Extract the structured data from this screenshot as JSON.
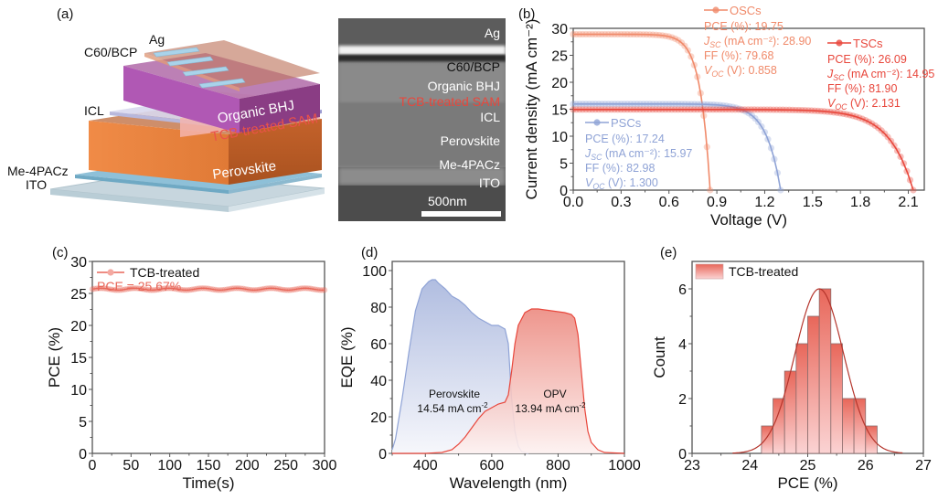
{
  "panels": {
    "a": {
      "label": "(a)",
      "stack_labels": {
        "ag": "Ag",
        "c60": "C60/BCP",
        "icl": "ICL",
        "me4pacz": "Me-4PACz",
        "ito": "ITO",
        "organic": "Organic BHJ",
        "sam": "TCB-treated SAM",
        "perovskite": "Perovskite"
      },
      "sem_labels": [
        "Ag",
        "C60/BCP",
        "Organic BHJ",
        "TCB-treated SAM",
        "ICL",
        "Perovskite",
        "Me-4PACz",
        "ITO"
      ],
      "scale_bar": "500nm",
      "colors": {
        "perovskite": "#d9733a",
        "organic": "#8e3f88",
        "sam": "#f4b0ad",
        "sam_text": "#e8473c",
        "silver": "#a9d3ea",
        "ito": "#c9d9e0",
        "me4pacz": "#7fb5cf"
      }
    },
    "b": {
      "label": "(b)"
    },
    "c": {
      "label": "(c)"
    },
    "d": {
      "label": "(d)"
    },
    "e": {
      "label": "(e)"
    }
  },
  "chart_data": [
    {
      "id": "b",
      "type": "line",
      "xlabel": "Voltage (V)",
      "ylabel": "Current density (mA cm⁻²)",
      "xlim": [
        0,
        2.2
      ],
      "ylim": [
        0,
        30
      ],
      "xticks": [
        "0.0",
        "0.3",
        "0.6",
        "0.9",
        "1.2",
        "1.5",
        "1.8",
        "2.1"
      ],
      "yticks": [
        "0",
        "5",
        "10",
        "15",
        "20",
        "25",
        "30"
      ],
      "series": [
        {
          "name": "OSCs",
          "color": "#f08a6a",
          "jsc": 28.9,
          "voc": 0.858,
          "ff": 79.68,
          "pce": 19.75,
          "legend_lines": [
            "PCE (%): 19.75",
            "J_SC (mA cm⁻²): 28.90",
            "FF (%): 79.68",
            "V_OC (V): 0.858"
          ]
        },
        {
          "name": "PSCs",
          "color": "#8fa3d6",
          "jsc": 15.97,
          "voc": 1.3,
          "ff": 82.98,
          "pce": 17.24,
          "legend_lines": [
            "PCE (%): 17.24",
            "J_SC (mA cm⁻²): 15.97",
            "FF (%): 82.98",
            "V_OC (V): 1.300"
          ]
        },
        {
          "name": "TSCs",
          "color": "#e8473c",
          "jsc": 14.95,
          "voc": 2.131,
          "ff": 81.9,
          "pce": 26.09,
          "legend_lines": [
            "PCE (%): 26.09",
            "J_SC (mA cm⁻²): 14.95",
            "FF (%): 81.90",
            "V_OC (V): 2.131"
          ]
        }
      ]
    },
    {
      "id": "c",
      "type": "line",
      "xlabel": "Time(s)",
      "ylabel": "PCE (%)",
      "xlim": [
        0,
        300
      ],
      "ylim": [
        0,
        30
      ],
      "xticks": [
        "0",
        "50",
        "100",
        "150",
        "200",
        "250",
        "300"
      ],
      "yticks": [
        "0",
        "5",
        "10",
        "15",
        "20",
        "25",
        "30"
      ],
      "series": [
        {
          "name": "TCB-treated",
          "color": "#e8675a",
          "value": 25.67
        }
      ],
      "annotation": "PCE = 25.67%"
    },
    {
      "id": "d",
      "type": "area",
      "xlabel": "Wavelength (nm)",
      "ylabel": "EQE (%)",
      "xlim": [
        300,
        1000
      ],
      "ylim": [
        0,
        105
      ],
      "xticks": [
        "400",
        "600",
        "800",
        "1000"
      ],
      "yticks": [
        "0",
        "20",
        "40",
        "60",
        "80",
        "100"
      ],
      "series": [
        {
          "name": "Perovskite",
          "color": "#8fa3d6",
          "annotation": [
            "Perovskite",
            "14.54 mA cm⁻²"
          ],
          "x": [
            300,
            310,
            330,
            350,
            370,
            390,
            410,
            420,
            430,
            440,
            460,
            480,
            500,
            520,
            540,
            560,
            580,
            600,
            620,
            640,
            650,
            655,
            660,
            670,
            680,
            690,
            700,
            710
          ],
          "y": [
            2,
            8,
            30,
            55,
            78,
            90,
            94,
            95,
            95,
            93,
            90,
            86,
            84,
            81,
            77,
            74,
            72,
            70,
            70,
            68,
            60,
            45,
            30,
            12,
            4,
            1,
            0.5,
            0
          ]
        },
        {
          "name": "OPV",
          "color": "#e8473c",
          "annotation": [
            "OPV",
            "13.94 mA cm⁻²"
          ],
          "x": [
            300,
            400,
            450,
            480,
            500,
            520,
            540,
            560,
            580,
            600,
            620,
            640,
            650,
            660,
            670,
            680,
            700,
            720,
            740,
            760,
            780,
            800,
            820,
            840,
            850,
            860,
            870,
            880,
            890,
            900,
            920,
            940,
            1000
          ],
          "y": [
            0,
            0,
            0.5,
            2,
            5,
            9,
            14,
            19,
            23,
            25,
            27,
            28,
            32,
            45,
            60,
            70,
            77,
            79,
            79,
            78.5,
            78,
            77.5,
            77,
            76,
            74,
            65,
            45,
            25,
            12,
            6,
            2,
            0.5,
            0
          ]
        }
      ]
    },
    {
      "id": "e",
      "type": "bar",
      "xlabel": "PCE (%)",
      "ylabel": "Count",
      "xlim": [
        23,
        27
      ],
      "ylim": [
        0,
        7
      ],
      "xticks": [
        "23",
        "24",
        "25",
        "26",
        "27"
      ],
      "yticks": [
        "0",
        "2",
        "4",
        "6"
      ],
      "bin_edges": [
        24.2,
        24.4,
        24.6,
        24.8,
        25.0,
        25.2,
        25.4,
        25.6,
        25.8,
        26.0,
        26.2
      ],
      "values": [
        1,
        2,
        3,
        4,
        5,
        6,
        4,
        2,
        2,
        1
      ],
      "fit": {
        "type": "normal",
        "mean": 25.2,
        "peak": 6,
        "sigma": 0.42,
        "color": "#b5352c"
      },
      "legend": "TCB-treated",
      "bar_color_top": "#e8675a",
      "bar_color_bottom": "#fbd3d3"
    }
  ]
}
